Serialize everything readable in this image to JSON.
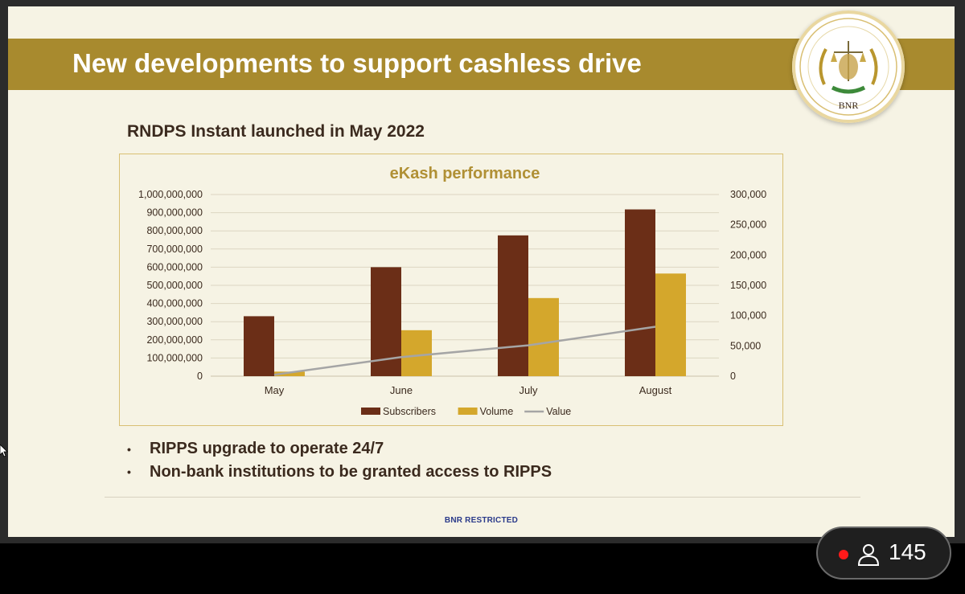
{
  "slide": {
    "title": "New developments to support cashless drive",
    "subtitle": "RNDPS Instant launched in May 2022",
    "logo_text": "BNR",
    "bullets": [
      "RIPPS upgrade to operate 24/7",
      "Non-bank institutions to be granted access to RIPPS"
    ],
    "footer": "BNR RESTRICTED"
  },
  "viewer": {
    "count": "145",
    "icon": "person-icon",
    "live_color": "#ff1a1a"
  },
  "chart_data": {
    "type": "bar",
    "title": "eKash performance",
    "categories": [
      "May",
      "June",
      "July",
      "August"
    ],
    "left_axis": {
      "min": 0,
      "max": 1000000000,
      "step": 100000000,
      "ticks": [
        "0",
        "100,000,000",
        "200,000,000",
        "300,000,000",
        "400,000,000",
        "500,000,000",
        "600,000,000",
        "700,000,000",
        "800,000,000",
        "900,000,000",
        "1,000,000,000"
      ]
    },
    "right_axis": {
      "min": 0,
      "max": 300000,
      "step": 50000,
      "ticks": [
        "0",
        "50,000",
        "100,000",
        "150,000",
        "200,000",
        "250,000",
        "300,000"
      ]
    },
    "series": [
      {
        "name": "Subscribers",
        "kind": "bar",
        "axis": "left",
        "color": "#6b2e17",
        "values": [
          330000000,
          600000000,
          775000000,
          918000000
        ]
      },
      {
        "name": "Volume",
        "kind": "bar",
        "axis": "left",
        "color": "#d4a72c",
        "values": [
          25000000,
          253000000,
          430000000,
          565000000
        ]
      },
      {
        "name": "Value",
        "kind": "line",
        "axis": "right",
        "color": "#a5a5a5",
        "values": [
          8000000,
          105000000,
          170000000,
          272000000
        ]
      }
    ],
    "grid": true,
    "legend": "bottom"
  }
}
